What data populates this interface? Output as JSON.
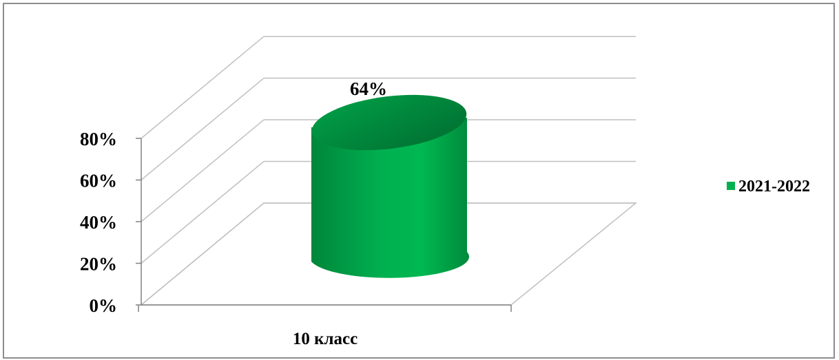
{
  "chart_data": {
    "type": "bar",
    "style": "3d-cylinder",
    "categories": [
      "10 класс"
    ],
    "series": [
      {
        "name": "2021-2022",
        "values": [
          64
        ],
        "value_labels": [
          "64%"
        ]
      }
    ],
    "ylim": [
      0,
      80
    ],
    "yticks": [
      0,
      20,
      40,
      60,
      80
    ],
    "ytick_labels": [
      "0%",
      "20%",
      "40%",
      "60%",
      "80%"
    ],
    "grid": true,
    "legend_placement": "right",
    "colors": {
      "series": "#00b050",
      "series_dark": "#00863a",
      "grid": "#bfbfbf",
      "axis": "#808080"
    }
  }
}
